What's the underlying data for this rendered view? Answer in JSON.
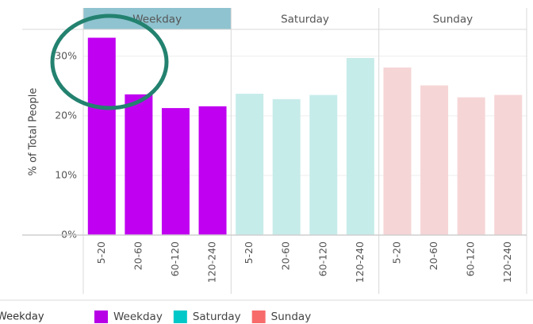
{
  "chart_data": {
    "type": "bar",
    "y_label": "% of Total People",
    "categories": [
      "5-20",
      "20-60",
      "60-120",
      "120-240"
    ],
    "series": [
      {
        "name": "Weekday",
        "color": "#b800e6",
        "bar_color": "#c000f0",
        "values": [
          33.1,
          23.6,
          21.3,
          21.6
        ]
      },
      {
        "name": "Saturday",
        "color": "#00c8c8",
        "bar_color": "#c6ecea",
        "values": [
          23.7,
          22.8,
          23.5,
          29.7
        ]
      },
      {
        "name": "Sunday",
        "color": "#f76b6b",
        "bar_color": "#f6d5d6",
        "values": [
          28.1,
          25.1,
          23.1,
          23.5
        ]
      }
    ],
    "highlighted": "Weekday",
    "header_highlight_color": "#8fc3d0",
    "ylim": [
      0,
      34.5
    ],
    "yticks": [
      {
        "value": 0,
        "label": "0%"
      },
      {
        "value": 10,
        "label": "10%"
      },
      {
        "value": 20,
        "label": "20%"
      },
      {
        "value": 30,
        "label": "30%"
      }
    ],
    "grid": true,
    "legend_title": "Weekday",
    "legend_position": "bottom"
  }
}
